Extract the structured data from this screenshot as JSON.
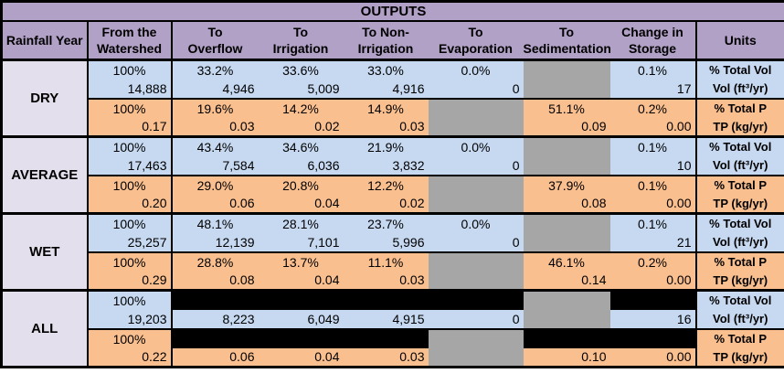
{
  "title": "OUTPUTS",
  "colors": {
    "header_purple": "#b2a1c7",
    "year_lavender": "#e4dfec",
    "volume_blue": "#c6d9f1",
    "phosphorus_orange": "#fabf8f",
    "not_applicable_gray": "#a6a6a6",
    "redaction_black": "#000000",
    "border_black": "#000000"
  },
  "header": {
    "columns": [
      {
        "key": "rainfall-year",
        "label": "Rainfall Year"
      },
      {
        "key": "from-watershed",
        "label": "From the\nWatershed"
      },
      {
        "key": "to-overflow",
        "label": "To\nOverflow"
      },
      {
        "key": "to-irrigation",
        "label": "To\nIrrigation"
      },
      {
        "key": "to-non-irrigation",
        "label": "To Non-\nIrrigation"
      },
      {
        "key": "to-evaporation",
        "label": "To\nEvaporation"
      },
      {
        "key": "to-sedimentation",
        "label": "To\nSedimentation"
      },
      {
        "key": "change-in-storage",
        "label": "Change in\nStorage"
      },
      {
        "key": "units",
        "label": "Units"
      }
    ]
  },
  "sections": [
    {
      "year": "DRY",
      "rows": [
        {
          "band": "blue",
          "align": "center",
          "unit": "% Total Vol",
          "cells": [
            {
              "t": "100%"
            },
            {
              "t": "33.2%"
            },
            {
              "t": "33.6%"
            },
            {
              "t": "33.0%"
            },
            {
              "t": "0.0%"
            },
            {
              "gray": true,
              "rowspan": 2
            },
            {
              "t": "0.1%"
            }
          ]
        },
        {
          "band": "blue",
          "align": "right",
          "unit": "Vol (ft³/yr)",
          "cells": [
            {
              "t": "14,888"
            },
            {
              "t": "4,946"
            },
            {
              "t": "5,009"
            },
            {
              "t": "4,916"
            },
            {
              "t": "0"
            },
            {
              "t": "17"
            }
          ]
        },
        {
          "band": "orange",
          "align": "center",
          "unit": "% Total P",
          "cells": [
            {
              "t": "100%"
            },
            {
              "t": "19.6%"
            },
            {
              "t": "14.2%"
            },
            {
              "t": "14.9%"
            },
            {
              "gray": true,
              "rowspan": 2
            },
            {
              "t": "51.1%"
            },
            {
              "t": "0.2%"
            }
          ]
        },
        {
          "band": "orange",
          "align": "right",
          "unit": "TP (kg/yr)",
          "cells": [
            {
              "t": "0.17"
            },
            {
              "t": "0.03"
            },
            {
              "t": "0.02"
            },
            {
              "t": "0.03"
            },
            {
              "t": "0.09"
            },
            {
              "t": "0.00"
            }
          ]
        }
      ]
    },
    {
      "year": "AVERAGE",
      "rows": [
        {
          "band": "blue",
          "align": "center",
          "unit": "% Total Vol",
          "cells": [
            {
              "t": "100%"
            },
            {
              "t": "43.4%"
            },
            {
              "t": "34.6%"
            },
            {
              "t": "21.9%"
            },
            {
              "t": "0.0%"
            },
            {
              "gray": true,
              "rowspan": 2
            },
            {
              "t": "0.1%"
            }
          ]
        },
        {
          "band": "blue",
          "align": "right",
          "unit": "Vol (ft³/yr)",
          "cells": [
            {
              "t": "17,463"
            },
            {
              "t": "7,584"
            },
            {
              "t": "6,036"
            },
            {
              "t": "3,832"
            },
            {
              "t": "0"
            },
            {
              "t": "10"
            }
          ]
        },
        {
          "band": "orange",
          "align": "center",
          "unit": "% Total P",
          "cells": [
            {
              "t": "100%"
            },
            {
              "t": "29.0%"
            },
            {
              "t": "20.8%"
            },
            {
              "t": "12.2%"
            },
            {
              "gray": true,
              "rowspan": 2
            },
            {
              "t": "37.9%"
            },
            {
              "t": "0.1%"
            }
          ]
        },
        {
          "band": "orange",
          "align": "right",
          "unit": "TP (kg/yr)",
          "cells": [
            {
              "t": "0.20"
            },
            {
              "t": "0.06"
            },
            {
              "t": "0.04"
            },
            {
              "t": "0.02"
            },
            {
              "t": "0.08"
            },
            {
              "t": "0.00"
            }
          ]
        }
      ]
    },
    {
      "year": "WET",
      "rows": [
        {
          "band": "blue",
          "align": "center",
          "unit": "% Total Vol",
          "cells": [
            {
              "t": "100%"
            },
            {
              "t": "48.1%"
            },
            {
              "t": "28.1%"
            },
            {
              "t": "23.7%"
            },
            {
              "t": "0.0%"
            },
            {
              "gray": true,
              "rowspan": 2
            },
            {
              "t": "0.1%"
            }
          ]
        },
        {
          "band": "blue",
          "align": "right",
          "unit": "Vol (ft³/yr)",
          "cells": [
            {
              "t": "25,257"
            },
            {
              "t": "12,139"
            },
            {
              "t": "7,101"
            },
            {
              "t": "5,996"
            },
            {
              "t": "0"
            },
            {
              "t": "21"
            }
          ]
        },
        {
          "band": "orange",
          "align": "center",
          "unit": "% Total P",
          "cells": [
            {
              "t": "100%"
            },
            {
              "t": "28.8%"
            },
            {
              "t": "13.7%"
            },
            {
              "t": "11.1%"
            },
            {
              "gray": true,
              "rowspan": 2
            },
            {
              "t": "46.1%"
            },
            {
              "t": "0.2%"
            }
          ]
        },
        {
          "band": "orange",
          "align": "right",
          "unit": "TP (kg/yr)",
          "cells": [
            {
              "t": "0.29"
            },
            {
              "t": "0.08"
            },
            {
              "t": "0.04"
            },
            {
              "t": "0.03"
            },
            {
              "t": "0.14"
            },
            {
              "t": "0.00"
            }
          ]
        }
      ]
    },
    {
      "year": "ALL",
      "rows": [
        {
          "band": "blue",
          "align": "center",
          "unit": "% Total Vol",
          "cells": [
            {
              "t": "100%"
            },
            {
              "black": true,
              "colspan": 4
            },
            {
              "gray": true,
              "rowspan": 2
            },
            {
              "black": true
            }
          ]
        },
        {
          "band": "blue",
          "align": "right",
          "unit": "Vol (ft³/yr)",
          "cells": [
            {
              "t": "19,203"
            },
            {
              "t": "8,223"
            },
            {
              "t": "6,049"
            },
            {
              "t": "4,915"
            },
            {
              "t": "0"
            },
            {
              "t": "16"
            }
          ]
        },
        {
          "band": "orange",
          "align": "center",
          "unit": "% Total P",
          "cells": [
            {
              "t": "100%"
            },
            {
              "black": true,
              "colspan": 3
            },
            {
              "gray": true,
              "rowspan": 2
            },
            {
              "black": true,
              "colspan": 2
            }
          ]
        },
        {
          "band": "orange",
          "align": "right",
          "unit": "TP (kg/yr)",
          "cells": [
            {
              "t": "0.22"
            },
            {
              "t": "0.06"
            },
            {
              "t": "0.04"
            },
            {
              "t": "0.03"
            },
            {
              "t": "0.10"
            },
            {
              "t": "0.00"
            }
          ]
        }
      ]
    }
  ]
}
